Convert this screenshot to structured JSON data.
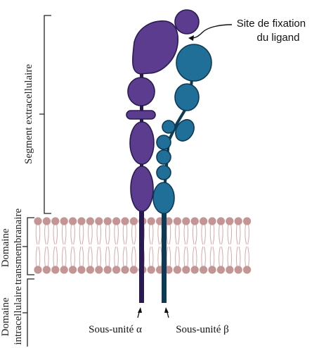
{
  "regions": {
    "extracellular": "Segment extracellulaire",
    "transmembrane": [
      "Domaine",
      "transmembranaire"
    ],
    "intracellular": [
      "Domaine",
      "intracellulaire"
    ]
  },
  "ligand_site": [
    "Site de fixation",
    "du ligand"
  ],
  "subunits": {
    "alpha": "Sous-unité α",
    "beta": "Sous-unité β"
  },
  "colors": {
    "alpha": "#5b3c8e",
    "alpha_dark": "#2a1a52",
    "beta": "#1f6f99",
    "beta_dark": "#0d3a55",
    "lipid_head": "#c49595",
    "lipid_tail": "#d9a9a9"
  }
}
